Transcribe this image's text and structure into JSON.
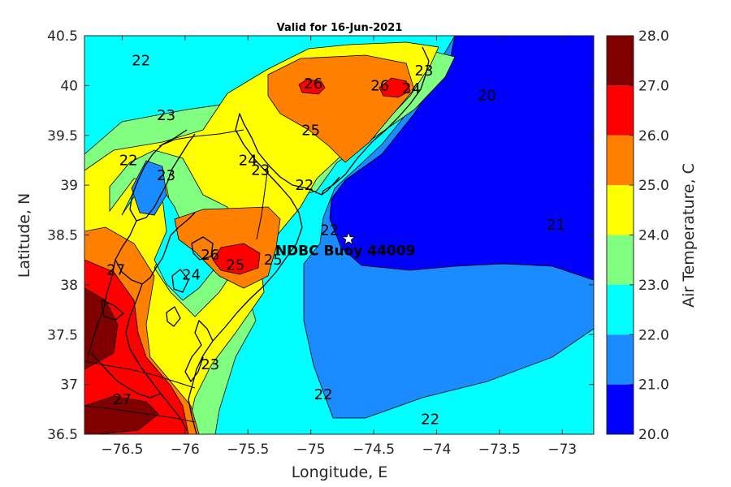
{
  "chart_data": {
    "type": "heatmap",
    "title": "Valid for 16-Jun-2021",
    "xlabel": "Longitude, E",
    "ylabel": "Latitude, N",
    "xlim": [
      -76.8,
      -72.75
    ],
    "ylim": [
      36.5,
      40.5
    ],
    "xticks": [
      -76.5,
      -76,
      -75.5,
      -75,
      -74.5,
      -74,
      -73.5,
      -73
    ],
    "xtick_labels": [
      "−76.5",
      "−76",
      "−75.5",
      "−75",
      "−74.5",
      "−74",
      "−73.5",
      "−73"
    ],
    "yticks": [
      36.5,
      37,
      37.5,
      38,
      38.5,
      39,
      39.5,
      40,
      40.5
    ],
    "ytick_labels": [
      "36.5",
      "37",
      "37.5",
      "38",
      "38.5",
      "39",
      "39.5",
      "40",
      "40.5"
    ],
    "colorbar": {
      "label": "Air Temperature, C",
      "levels": [
        20,
        21,
        22,
        23,
        24,
        25,
        26,
        27,
        28
      ],
      "tick_labels": [
        "20.0",
        "21.0",
        "22.0",
        "23.0",
        "24.0",
        "25.0",
        "26.0",
        "27.0",
        "28.0"
      ],
      "colors": [
        "#0000ff",
        "#1a8cff",
        "#00ffff",
        "#80ff80",
        "#ffff00",
        "#ff8000",
        "#ff0000",
        "#800000"
      ]
    },
    "contour_labels": [
      {
        "text": "22",
        "lon": -76.35,
        "lat": 40.25
      },
      {
        "text": "23",
        "lon": -76.15,
        "lat": 39.7
      },
      {
        "text": "26",
        "lon": -74.98,
        "lat": 40.02
      },
      {
        "text": "26",
        "lon": -74.45,
        "lat": 40.0
      },
      {
        "text": "25",
        "lon": -75.0,
        "lat": 39.55
      },
      {
        "text": "23",
        "lon": -74.1,
        "lat": 40.15
      },
      {
        "text": "24",
        "lon": -74.2,
        "lat": 39.97
      },
      {
        "text": "20",
        "lon": -73.6,
        "lat": 39.9
      },
      {
        "text": "24",
        "lon": -75.5,
        "lat": 39.25
      },
      {
        "text": "23",
        "lon": -75.4,
        "lat": 39.15
      },
      {
        "text": "22",
        "lon": -75.05,
        "lat": 39.0
      },
      {
        "text": "23",
        "lon": -76.15,
        "lat": 39.1
      },
      {
        "text": "22",
        "lon": -76.45,
        "lat": 39.25
      },
      {
        "text": "26",
        "lon": -75.8,
        "lat": 38.3
      },
      {
        "text": "25",
        "lon": -75.6,
        "lat": 38.2
      },
      {
        "text": "25",
        "lon": -75.3,
        "lat": 38.25
      },
      {
        "text": "24",
        "lon": -75.95,
        "lat": 38.1
      },
      {
        "text": "21",
        "lon": -73.05,
        "lat": 38.6
      },
      {
        "text": "22",
        "lon": -74.85,
        "lat": 38.55
      },
      {
        "text": "27",
        "lon": -76.55,
        "lat": 38.15
      },
      {
        "text": "27",
        "lon": -76.5,
        "lat": 36.85
      },
      {
        "text": "23",
        "lon": -75.8,
        "lat": 37.2
      },
      {
        "text": "22",
        "lon": -74.9,
        "lat": 36.9
      },
      {
        "text": "22",
        "lon": -74.05,
        "lat": 36.65
      }
    ],
    "annotations": [
      {
        "text": "NDBC Buoy 44009",
        "lon": -74.7,
        "lat": 38.46,
        "marker": "star"
      }
    ]
  }
}
